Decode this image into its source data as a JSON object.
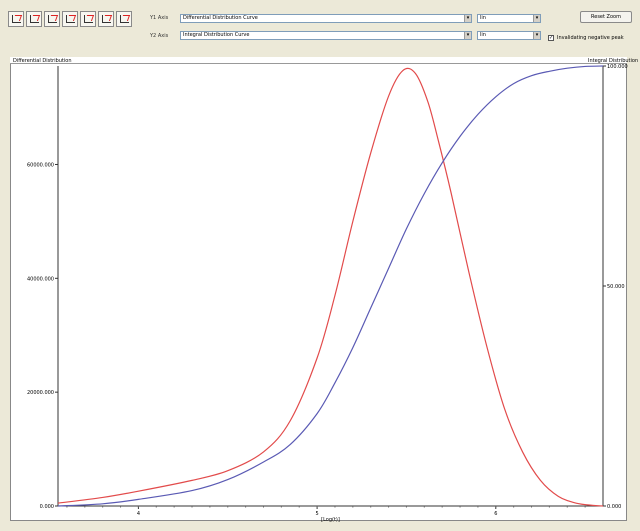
{
  "toolbar": {
    "y1_label": "Y1 Axis",
    "y2_label": "Y2 Axis",
    "y1_curve": "Differential Distribution Curve",
    "y2_curve": "Integral Distribution Curve",
    "y1_option": "lin",
    "y2_option": "lin",
    "reset_label": "Reset Zoom",
    "negative_label": "Invalidating negative peak"
  },
  "chart_data": {
    "type": "line",
    "title_left": "Differential Distribution",
    "title_right": "Integral Distribution",
    "xlabel": "[Log(t)]",
    "x_ticks": [
      "4",
      "5",
      "6"
    ],
    "y1_ticks": [
      "0.000",
      "20000.000",
      "40000.000",
      "60000.000"
    ],
    "y2_ticks": [
      "0.000",
      "50.000",
      "100.000"
    ],
    "series": [
      {
        "color": "#e24b4b",
        "axis": "y1",
        "x": [
          3.55,
          3.8,
          4.0,
          4.3,
          4.5,
          4.7,
          4.85,
          5.0,
          5.1,
          5.2,
          5.3,
          5.4,
          5.48,
          5.55,
          5.62,
          5.68,
          5.75,
          5.85,
          5.95,
          6.05,
          6.15,
          6.25,
          6.35,
          6.45,
          6.55,
          6.6
        ],
        "y": [
          500,
          1500,
          2600,
          4500,
          6200,
          9500,
          15000,
          26000,
          37000,
          50000,
          62000,
          72000,
          76500,
          76000,
          71000,
          64000,
          55000,
          41000,
          28000,
          17000,
          9500,
          4500,
          1700,
          500,
          100,
          0
        ]
      },
      {
        "color": "#5a5ab4",
        "axis": "y2",
        "x": [
          3.55,
          3.8,
          4.0,
          4.3,
          4.5,
          4.7,
          4.85,
          5.0,
          5.1,
          5.2,
          5.3,
          5.4,
          5.5,
          5.6,
          5.7,
          5.8,
          5.9,
          6.0,
          6.1,
          6.2,
          6.3,
          6.4,
          6.5,
          6.6
        ],
        "y": [
          0,
          0.5,
          1.5,
          3.5,
          6,
          10,
          14,
          21,
          28,
          36,
          45,
          54,
          63,
          71,
          78,
          84,
          89,
          93,
          96,
          97.8,
          98.8,
          99.5,
          99.9,
          100
        ]
      }
    ]
  }
}
